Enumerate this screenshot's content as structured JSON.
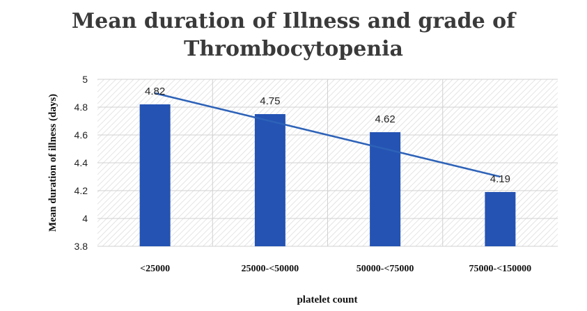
{
  "chart_data": {
    "type": "bar",
    "title_lines": [
      "Mean duration of Illness and grade of",
      "Thrombocytopenia"
    ],
    "xlabel": "platelet count",
    "ylabel": "Mean duration of illness (days)",
    "categories": [
      "<25000",
      "25000-<50000",
      "50000-<75000",
      "75000-<150000"
    ],
    "values": [
      4.82,
      4.75,
      4.62,
      4.19
    ],
    "data_labels": [
      "4.82",
      "4.75",
      "4.62",
      "4.19"
    ],
    "trendline": {
      "type": "linear",
      "start": 4.9,
      "end": 4.3
    },
    "ylim": [
      3.8,
      5.0
    ],
    "yticks": [
      3.8,
      4.0,
      4.2,
      4.4,
      4.6,
      4.8,
      5.0
    ],
    "ytick_labels": [
      "3.8",
      "4",
      "4.2",
      "4.4",
      "4.6",
      "4.8",
      "5"
    ],
    "grid": "horizontal",
    "legend": "none",
    "colors": {
      "bar": "#2453b3",
      "trendline": "#2d62b8",
      "gridline": "#d0d0d0",
      "plot_hatch": "#d9d9d9",
      "title": "#3a3a3a"
    }
  }
}
